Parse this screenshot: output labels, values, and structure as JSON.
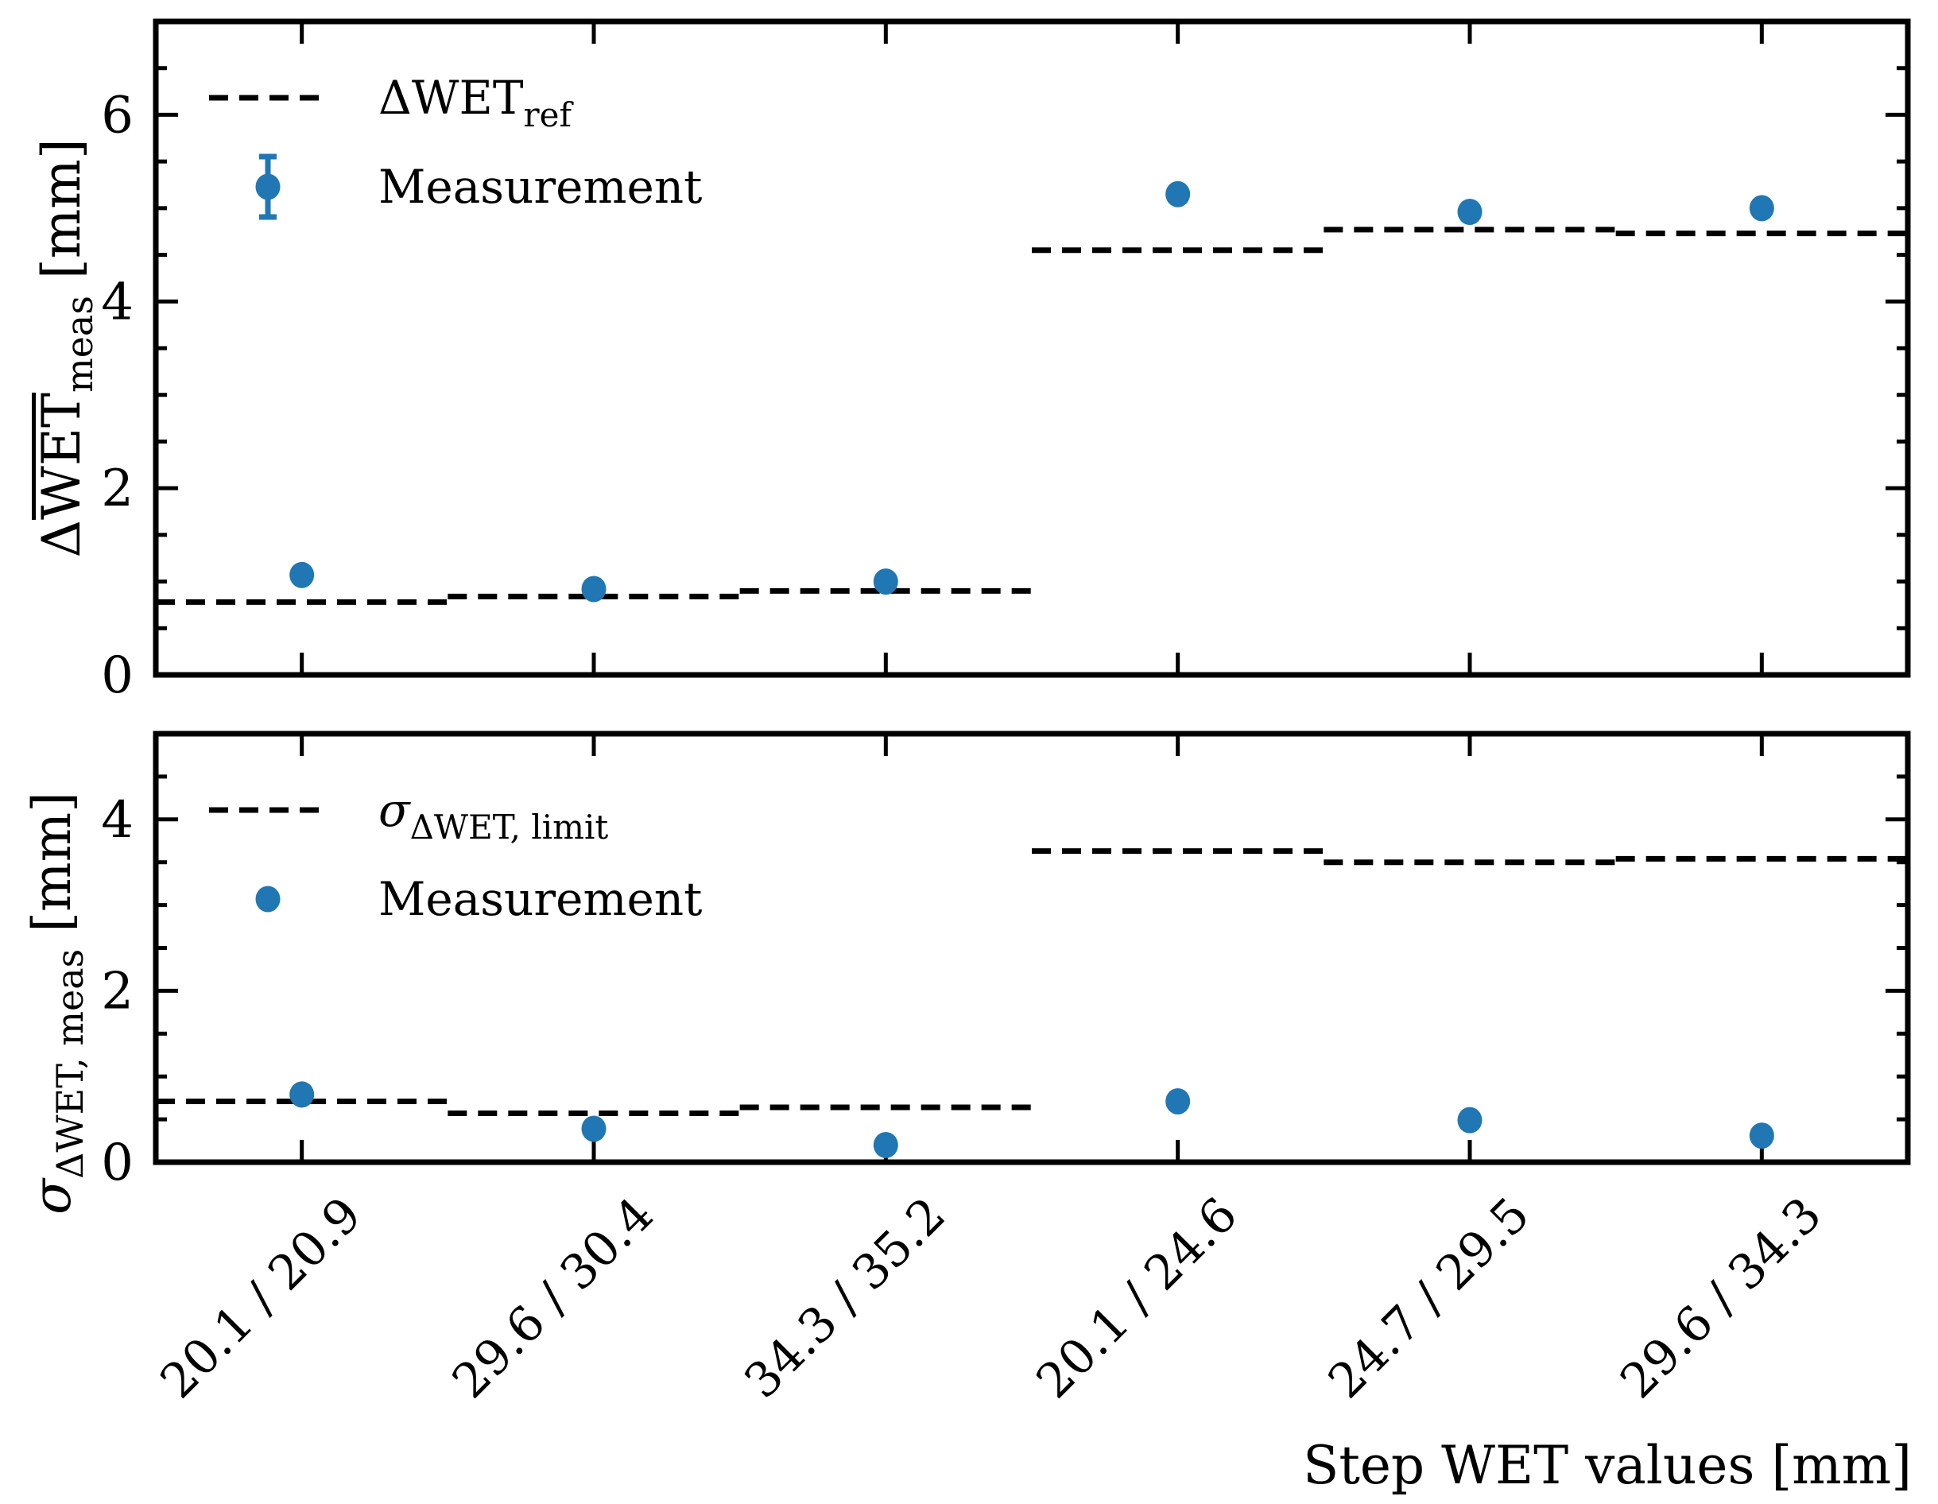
{
  "figure": {
    "background": "#ffffff",
    "ink_color": "#000000",
    "accent_blue": "#2077b4",
    "xlabel": "Step WET values [mm]"
  },
  "categories": [
    "20.1 / 20.9",
    "29.6 / 30.4",
    "34.3 / 35.2",
    "20.1 / 24.6",
    "24.7 / 29.5",
    "29.6 / 34.3"
  ],
  "chart_data": [
    {
      "type": "scatter",
      "panel": "top",
      "ylabel": "Δ(overline WET)_meas [mm]",
      "ylabel_parts": {
        "prefix": "Δ",
        "prefix_italic": false,
        "overline_text": "WET",
        "subscript": "meas",
        "suffix": " [mm]"
      },
      "categories": [
        "20.1 / 20.9",
        "29.6 / 30.4",
        "34.3 / 35.2",
        "20.1 / 24.6",
        "24.7 / 29.5",
        "29.6 / 34.3"
      ],
      "ylim": [
        0,
        7
      ],
      "yticks": [
        0,
        2,
        4,
        6
      ],
      "yticklabels": [
        "0",
        "2",
        "4",
        "6"
      ],
      "minor_tick_step": 0.5,
      "grid": false,
      "legend_position": "upper-left",
      "series": [
        {
          "name": "ΔWET_ref",
          "label_main": "ΔWET",
          "label_sub": "ref",
          "label_italic": false,
          "style": "dashed-step",
          "values": [
            0.78,
            0.84,
            0.9,
            4.55,
            4.77,
            4.73
          ]
        },
        {
          "name": "Measurement",
          "label_main": "Measurement",
          "label_sub": "",
          "label_italic": false,
          "style": "points",
          "legend_errorbar": true,
          "values": [
            1.07,
            0.92,
            1.0,
            5.15,
            4.96,
            5.0
          ]
        }
      ]
    },
    {
      "type": "scatter",
      "panel": "bottom",
      "ylabel": "σ_ΔWET, meas [mm]",
      "ylabel_parts": {
        "prefix": "σ",
        "prefix_italic": true,
        "overline_text": "",
        "subscript": "ΔWET, meas",
        "suffix": " [mm]"
      },
      "categories": [
        "20.1 / 20.9",
        "29.6 / 30.4",
        "34.3 / 35.2",
        "20.1 / 24.6",
        "24.7 / 29.5",
        "29.6 / 34.3"
      ],
      "ylim": [
        0,
        5
      ],
      "yticks": [
        0,
        2,
        4
      ],
      "yticklabels": [
        "0",
        "2",
        "4"
      ],
      "minor_tick_step": 0.5,
      "grid": false,
      "legend_position": "upper-left",
      "series": [
        {
          "name": "σ_ΔWET, limit",
          "label_main": "σ",
          "label_sub": "ΔWET, limit",
          "label_italic": true,
          "style": "dashed-step",
          "values": [
            0.71,
            0.57,
            0.64,
            3.63,
            3.5,
            3.54
          ]
        },
        {
          "name": "Measurement",
          "label_main": "Measurement",
          "label_sub": "",
          "label_italic": false,
          "style": "points",
          "legend_errorbar": false,
          "values": [
            0.79,
            0.39,
            0.2,
            0.71,
            0.49,
            0.31
          ]
        }
      ]
    }
  ]
}
